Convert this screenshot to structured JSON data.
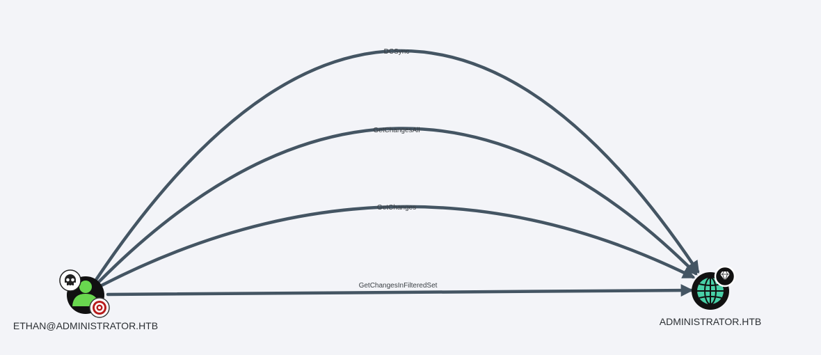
{
  "graph": {
    "nodes": {
      "source": {
        "label": "ETHAN@ADMINISTRATOR.HTB",
        "type": "user",
        "badges": [
          "skull-icon",
          "target-icon"
        ]
      },
      "target": {
        "label": "ADMINISTRATOR.HTB",
        "type": "domain",
        "badges": [
          "diamond-icon"
        ]
      }
    },
    "edges": [
      {
        "label": "DCSync"
      },
      {
        "label": "GetChangesAll"
      },
      {
        "label": "GetChanges"
      },
      {
        "label": "GetChangesInFilteredSet"
      }
    ]
  },
  "colors": {
    "background": "#f3f4f8",
    "edge": "#445563",
    "user_node": "#69d84f",
    "domain_node": "#48d0a7",
    "target_badge": "#b71c1c"
  }
}
